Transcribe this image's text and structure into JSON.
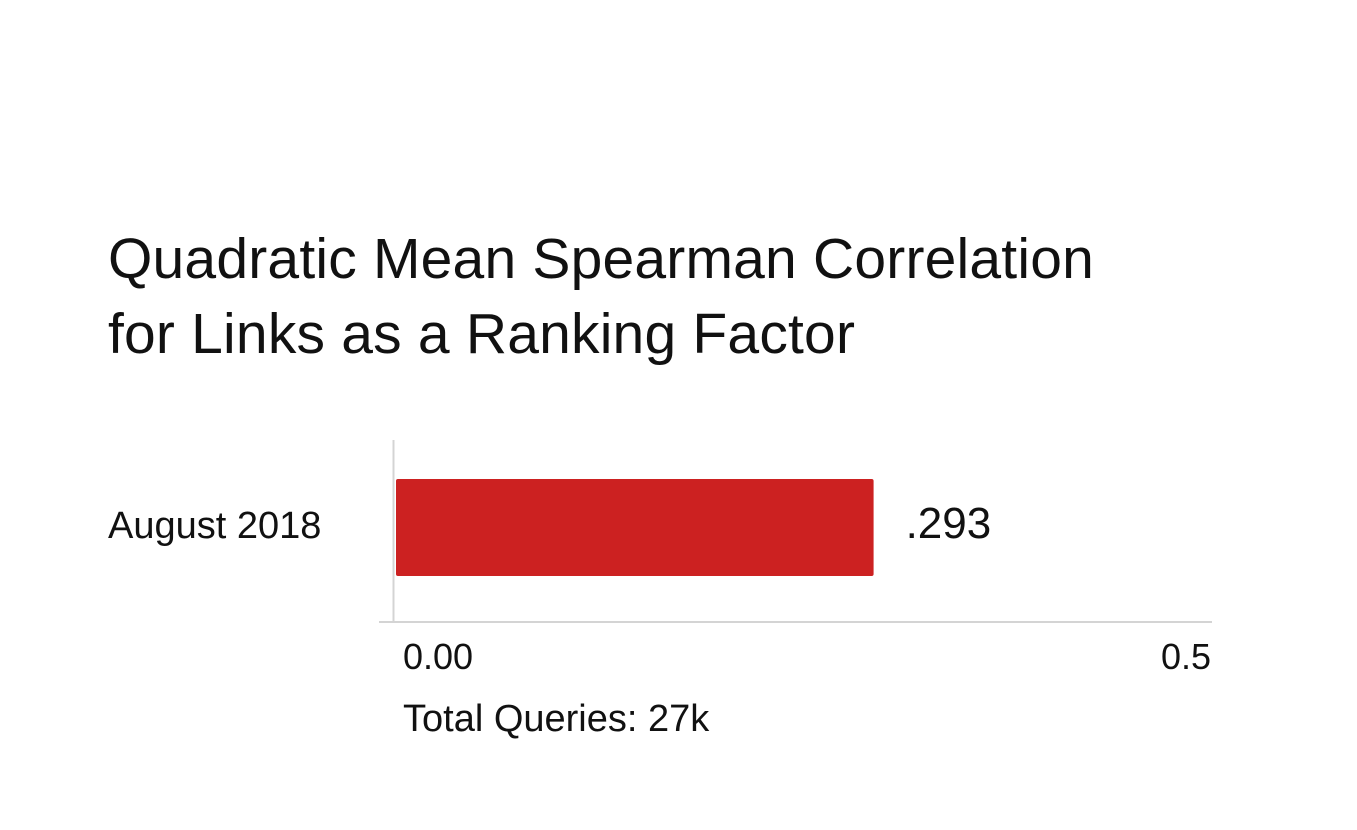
{
  "chart_data": {
    "type": "bar",
    "orientation": "horizontal",
    "title_lines": [
      "Quadratic Mean Spearman Correlation",
      "for Links as a Ranking Factor"
    ],
    "categories": [
      "August 2018"
    ],
    "values": [
      0.293
    ],
    "data_labels": [
      ".293"
    ],
    "xlim": [
      0,
      0.5
    ],
    "x_ticks": [
      "0.00",
      "0.5"
    ],
    "annotation": "Total Queries: 27k",
    "grid": false,
    "legend": "none",
    "bar_color": "#cc2121",
    "axis_color": "#d4d4d4"
  }
}
